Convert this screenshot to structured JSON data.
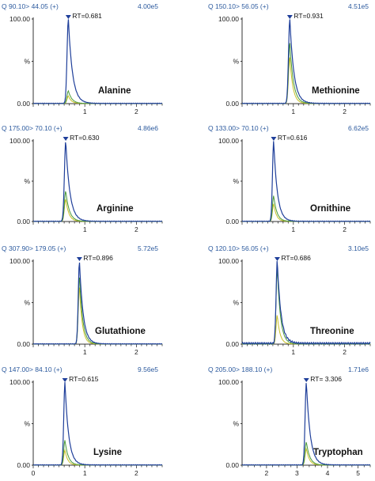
{
  "chart_data": [
    {
      "type": "line",
      "compound": "Alanine",
      "transition": "Q 90.10> 44.05 (+)",
      "intensity": "4.00e5",
      "rt_label": "RT=0.681",
      "rt": 0.681,
      "width": 0.05,
      "green": 0.15,
      "yellow": 0.09,
      "yticks": [
        "0.00",
        "%",
        "100.00"
      ],
      "xticks": [
        "1",
        "2"
      ],
      "xlim": [
        0,
        2.5
      ],
      "ylim": [
        0,
        100
      ]
    },
    {
      "type": "line",
      "compound": "Methionine",
      "transition": "Q 150.10> 56.05 (+)",
      "intensity": "4.51e5",
      "rt_label": "RT=0.931",
      "rt": 0.931,
      "width": 0.05,
      "green": 0.72,
      "yellow": 0.55,
      "yticks": [
        "0.00",
        "%",
        "100.00"
      ],
      "xticks": [
        "1",
        "2"
      ],
      "xlim": [
        0,
        2.5
      ],
      "ylim": [
        0,
        100
      ]
    },
    {
      "type": "line",
      "compound": "Arginine",
      "transition": "Q 175.00> 70.10 (+)",
      "intensity": "4.86e6",
      "rt_label": "RT=0.630",
      "rt": 0.63,
      "width": 0.05,
      "green": 0.38,
      "yellow": 0.28,
      "yticks": [
        "0.00",
        "%",
        "100.00"
      ],
      "xticks": [
        "1",
        "2"
      ],
      "xlim": [
        0,
        2.5
      ],
      "ylim": [
        0,
        100
      ]
    },
    {
      "type": "line",
      "compound": "Ornithine",
      "transition": "Q 133.00> 70.10 (+)",
      "intensity": "6.62e5",
      "rt_label": "RT=0.616",
      "rt": 0.616,
      "width": 0.045,
      "green": 0.32,
      "yellow": 0.22,
      "yticks": [
        "0.00",
        "%",
        "100.00"
      ],
      "xticks": [
        "1",
        "2"
      ],
      "xlim": [
        0,
        2.5
      ],
      "ylim": [
        0,
        100
      ]
    },
    {
      "type": "line",
      "compound": "Glutathione",
      "transition": "Q 307.90> 179.05 (+)",
      "intensity": "5.72e5",
      "rt_label": "RT=0.896",
      "rt": 0.896,
      "width": 0.045,
      "green": 0.82,
      "yellow": 0.7,
      "yticks": [
        "0.00",
        "%",
        "100.00"
      ],
      "xticks": [
        "1",
        "2"
      ],
      "xlim": [
        0,
        2.5
      ],
      "ylim": [
        0,
        100
      ]
    },
    {
      "type": "line",
      "compound": "Threonine",
      "transition": "Q 120.10> 56.05 (+)",
      "intensity": "3.10e5",
      "rt_label": "RT=0.686",
      "rt": 0.686,
      "width": 0.045,
      "green": 0.92,
      "yellow": 0.35,
      "yticks": [
        "0.00",
        "%",
        "100.00"
      ],
      "xticks": [
        "1",
        "2"
      ],
      "xlim": [
        0,
        2.5
      ],
      "ylim": [
        0,
        100
      ]
    },
    {
      "type": "line",
      "compound": "Lysine",
      "transition": "Q 147.00> 84.10 (+)",
      "intensity": "9.56e5",
      "rt_label": "RT=0.615",
      "rt": 0.615,
      "width": 0.045,
      "green": 0.3,
      "yellow": 0.18,
      "yticks": [
        "0.00",
        "%",
        "100.00"
      ],
      "xticks": [
        "0",
        "1",
        "2"
      ],
      "xlim": [
        0,
        2.5
      ],
      "ylim": [
        0,
        100
      ]
    },
    {
      "type": "line",
      "compound": "Tryptophan",
      "transition": "Q 205.00> 188.10 (+)",
      "intensity": "1.71e6",
      "rt_label": "RT= 3.306",
      "rt": 3.306,
      "width": 0.08,
      "green": 0.28,
      "yellow": 0.2,
      "yticks": [
        "0.00",
        "%",
        "100.00"
      ],
      "xticks": [
        "2",
        "3",
        "4",
        "5"
      ],
      "xlim": [
        1.2,
        5.4
      ],
      "ylim": [
        0,
        100
      ]
    }
  ],
  "colors": {
    "trace": "#1f3f9a",
    "green": "#4a9a3a",
    "yellow": "#c9c028",
    "axis": "#333333",
    "header": "#2c5a9e",
    "marker": "#1f3f9a"
  }
}
